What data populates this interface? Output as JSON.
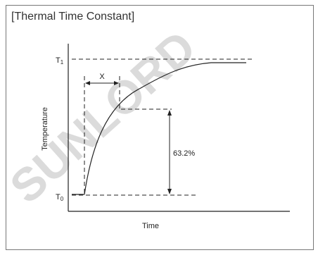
{
  "title": "[Thermal Time Constant]",
  "labels": {
    "t1_main": "T",
    "t1_sub": "1",
    "t0_main": "T",
    "t0_sub": "0",
    "x_label": "X",
    "percent": "63.2%",
    "y_axis": "Temperature",
    "x_axis": "Time"
  },
  "watermark": "SUNLORD",
  "colors": {
    "line": "#222222",
    "frame": "#777777",
    "watermark": "#d0d0d0"
  }
}
